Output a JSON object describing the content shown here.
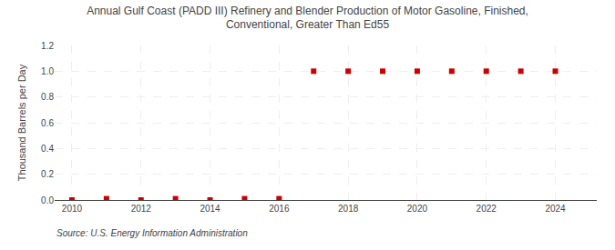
{
  "chart_data": {
    "type": "scatter",
    "title": "Annual Gulf Coast (PADD III) Refinery and Blender Production of Motor Gasoline, Finished,\nConventional, Greater Than Ed55",
    "y_label": "Thousand Barrels per Day",
    "annotations": [
      "Source: U.S. Energy Information Administration"
    ],
    "x": [
      2010,
      2011,
      2012,
      2013,
      2014,
      2015,
      2016,
      2017,
      2018,
      2019,
      2020,
      2021,
      2022,
      2023,
      2024
    ],
    "values": [
      0.0,
      0.01,
      0.0,
      0.01,
      0.0,
      0.01,
      0.01,
      1.0,
      1.0,
      1.0,
      1.0,
      1.0,
      1.0,
      1.0,
      1.0
    ],
    "color": "#cc0000",
    "marker": "square",
    "xlim": [
      2009.5,
      2025.2
    ],
    "xticks": [
      2010,
      2012,
      2014,
      2016,
      2018,
      2020,
      2022,
      2024
    ],
    "ylim": [
      0.0,
      1.2
    ],
    "yticks": [
      {
        "value": 0.0,
        "label": "0.0"
      },
      0.2,
      0.4,
      0.6,
      0.8,
      {
        "value": 1.0,
        "label": "1.0"
      },
      1.2
    ],
    "grid": true
  }
}
